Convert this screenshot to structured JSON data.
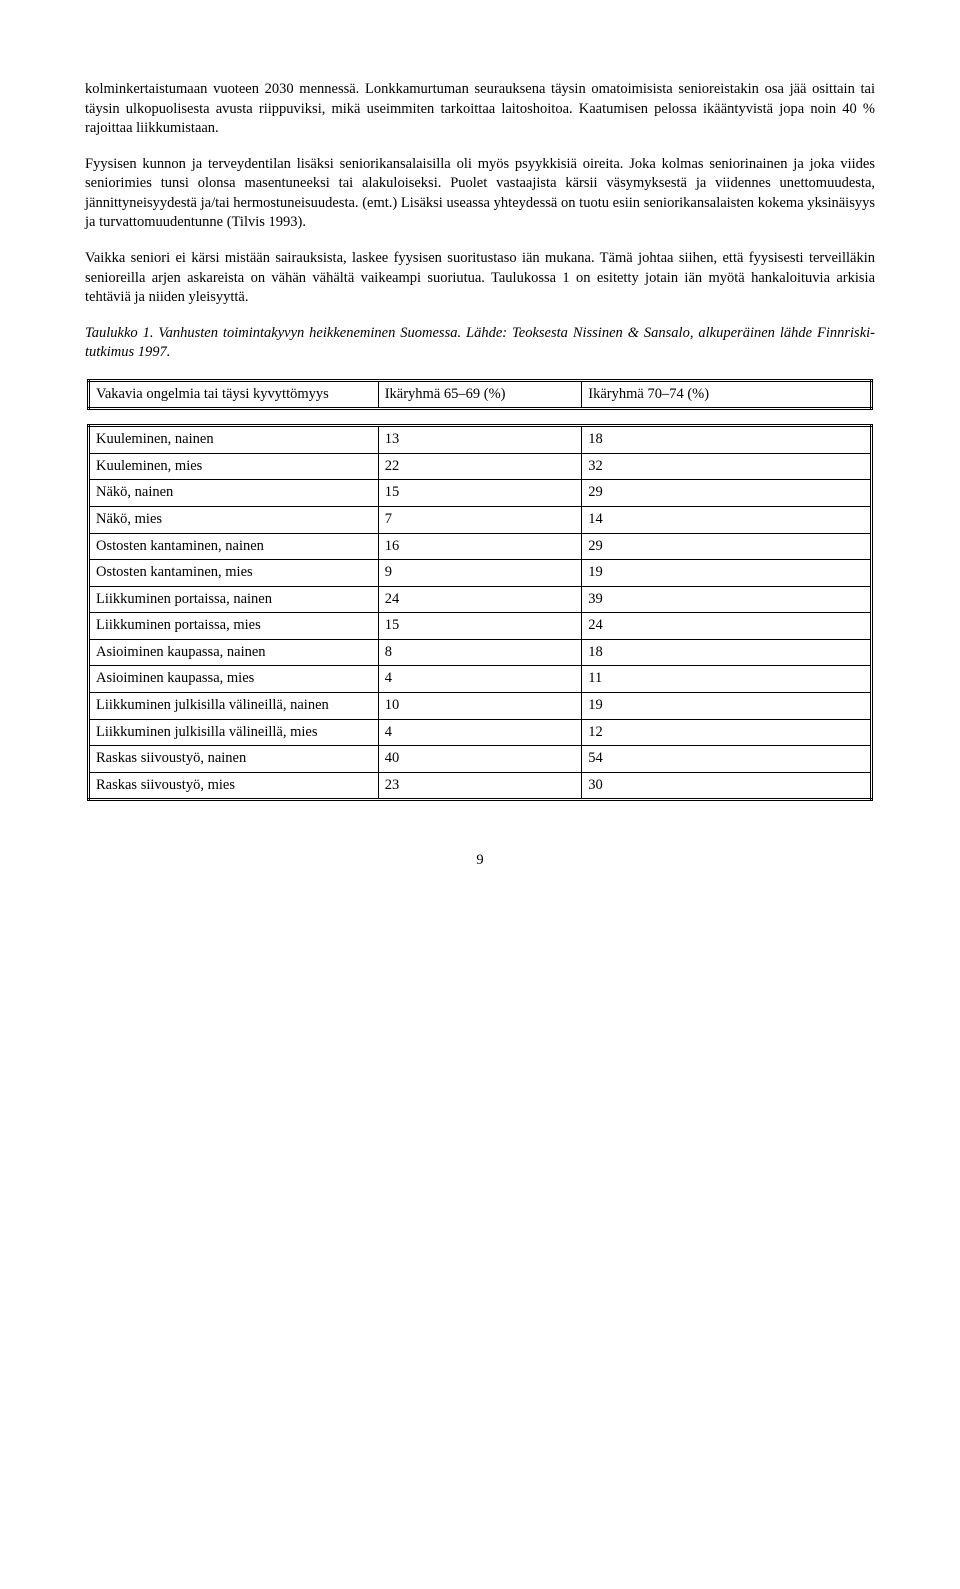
{
  "paragraphs": {
    "p1": "kolminkertaistumaan vuoteen 2030 mennessä. Lonkkamurtuman seurauksena täysin omatoimisista senioreistakin osa jää osittain tai täysin ulkopuolisesta avusta riippuviksi, mikä useimmiten tarkoittaa laitoshoitoa. Kaatumisen pelossa ikääntyvistä jopa noin 40 % rajoittaa liikkumistaan.",
    "p2": "Fyysisen kunnon ja terveydentilan lisäksi seniorikansalaisilla oli myös psyykkisiä oireita. Joka kolmas seniorinainen ja joka viides seniorimies tunsi olonsa masentuneeksi tai alakuloiseksi. Puolet vastaajista kärsii väsymyksestä ja viidennes unettomuudesta, jännittyneisyydestä ja/tai hermostuneisuudesta. (emt.) Lisäksi useassa yhteydessä on tuotu esiin seniorikansalaisten kokema yksinäisyys ja turvattomuudentunne (Tilvis 1993).",
    "p3": "Vaikka seniori ei kärsi mistään sairauksista, laskee fyysisen suoritustaso iän mukana. Tämä johtaa siihen, että fyysisesti terveilläkin senioreilla arjen askareista on vähän vähältä vaikeampi suoriutua. Taulukossa 1 on esitetty jotain iän myötä hankaloituvia arkisia tehtäviä ja niiden yleisyyttä.",
    "caption": "Taulukko 1. Vanhusten toimintakyvyn heikkeneminen Suomessa. Lähde: Teoksesta Nissinen & Sansalo, alkuperäinen lähde Finnriski-tutkimus 1997."
  },
  "table": {
    "headers": {
      "h1": "Vakavia ongelmia tai täysi kyvyttömyys",
      "h2": "Ikäryhmä 65–69 (%)",
      "h3": "Ikäryhmä 70–74 (%)"
    },
    "rows": [
      {
        "label": "Kuuleminen, nainen",
        "v1": "13",
        "v2": "18"
      },
      {
        "label": "Kuuleminen, mies",
        "v1": "22",
        "v2": "32"
      },
      {
        "label": "Näkö, nainen",
        "v1": "15",
        "v2": "29"
      },
      {
        "label": "Näkö, mies",
        "v1": "7",
        "v2": "14"
      },
      {
        "label": "Ostosten kantaminen, nainen",
        "v1": "16",
        "v2": "29"
      },
      {
        "label": "Ostosten kantaminen, mies",
        "v1": "9",
        "v2": "19"
      },
      {
        "label": "Liikkuminen portaissa, nainen",
        "v1": "24",
        "v2": "39"
      },
      {
        "label": "Liikkuminen portaissa, mies",
        "v1": "15",
        "v2": "24"
      },
      {
        "label": "Asioiminen kaupassa, nainen",
        "v1": "8",
        "v2": "18"
      },
      {
        "label": "Asioiminen kaupassa, mies",
        "v1": "4",
        "v2": "11"
      },
      {
        "label": "Liikkuminen julkisilla välineillä, nainen",
        "v1": "10",
        "v2": "19"
      },
      {
        "label": "Liikkuminen julkisilla välineillä, mies",
        "v1": "4",
        "v2": "12"
      },
      {
        "label": "Raskas siivoustyö, nainen",
        "v1": "40",
        "v2": "54"
      },
      {
        "label": "Raskas siivoustyö, mies",
        "v1": "23",
        "v2": "30"
      }
    ]
  },
  "pageNumber": "9"
}
